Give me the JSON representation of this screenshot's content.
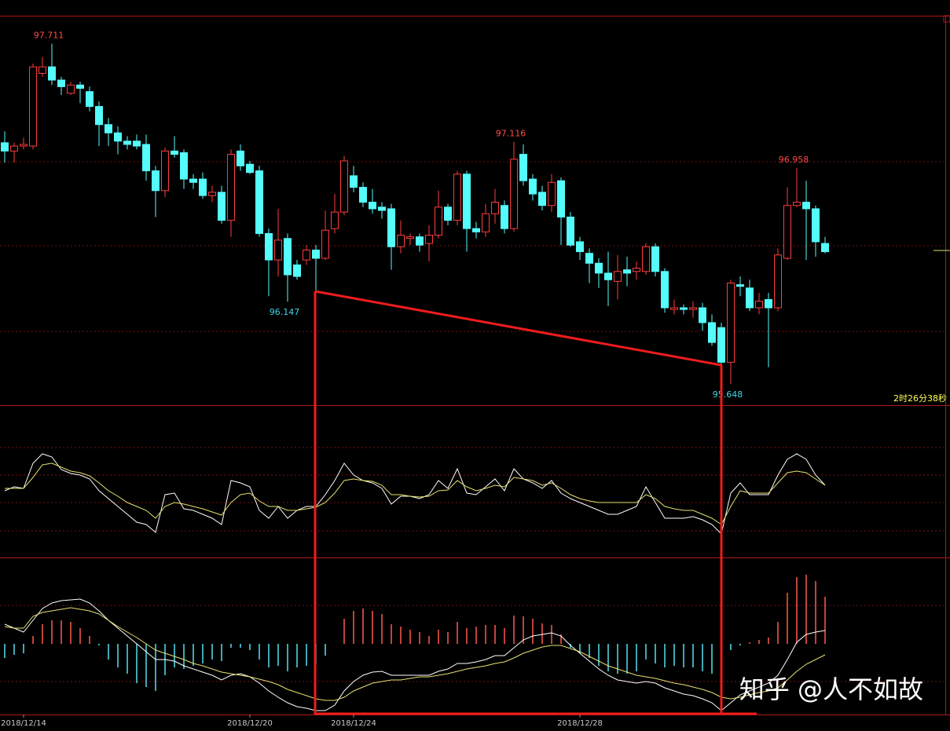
{
  "chart_data": [
    {
      "type": "candlestick",
      "categories": [
        null,
        null,
        "2018/12/14",
        null,
        null,
        null,
        null,
        null,
        null,
        null,
        null,
        null,
        null,
        null,
        null,
        null,
        null,
        null,
        null,
        null,
        null,
        null,
        null,
        null,
        null,
        null,
        "2018/12/20",
        null,
        null,
        null,
        null,
        null,
        null,
        null,
        null,
        null,
        null,
        "2018/12/24",
        null,
        null,
        null,
        null,
        null,
        null,
        null,
        null,
        null,
        null,
        null,
        null,
        null,
        null,
        null,
        null,
        null,
        null,
        null,
        null,
        null,
        null,
        null,
        "2018/12/28",
        null,
        null,
        null,
        null,
        null,
        null,
        null,
        null,
        null,
        null,
        null,
        null,
        null,
        null,
        null,
        null,
        null,
        null,
        null,
        null,
        null,
        null,
        null,
        null,
        null,
        null
      ],
      "open": [
        97.11,
        97.06,
        97.09,
        97.09,
        97.53,
        97.57,
        97.49,
        97.41,
        97.46,
        97.42,
        97.33,
        97.22,
        97.17,
        97.12,
        97.12,
        97.1,
        96.94,
        96.82,
        97.06,
        97.05,
        96.89,
        96.89,
        96.79,
        96.81,
        96.64,
        97.06,
        96.98,
        96.94,
        96.56,
        96.4,
        96.53,
        96.37,
        96.4,
        96.46,
        96.41,
        96.59,
        96.69,
        96.91,
        96.84,
        96.75,
        96.72,
        96.71,
        96.48,
        96.53,
        96.54,
        96.5,
        96.55,
        96.72,
        96.64,
        96.92,
        96.59,
        96.57,
        96.68,
        96.73,
        96.59,
        97.04,
        96.89,
        96.81,
        96.73,
        96.88,
        96.66,
        96.51,
        96.44,
        96.38,
        96.32,
        96.27,
        96.34,
        96.33,
        96.33,
        96.48,
        96.33,
        96.1,
        96.11,
        96.1,
        96.11,
        96.02,
        95.99,
        95.78,
        96.25,
        96.23,
        96.11,
        96.16,
        96.11,
        96.41,
        96.73,
        96.75,
        96.71,
        96.5
      ],
      "high": [
        97.18,
        97.11,
        97.14,
        97.59,
        97.63,
        97.711,
        97.51,
        97.48,
        97.48,
        97.45,
        97.36,
        97.26,
        97.21,
        97.15,
        97.16,
        97.16,
        96.97,
        97.08,
        97.15,
        97.07,
        96.92,
        96.93,
        96.85,
        96.85,
        97.07,
        97.1,
        97.0,
        96.97,
        96.59,
        96.71,
        96.56,
        96.4,
        96.49,
        96.49,
        96.7,
        96.8,
        97.03,
        96.97,
        96.87,
        96.83,
        96.75,
        96.74,
        96.64,
        96.56,
        96.56,
        96.61,
        96.82,
        96.74,
        96.94,
        96.94,
        96.63,
        96.74,
        96.83,
        96.76,
        97.116,
        97.1,
        96.92,
        96.85,
        96.92,
        96.9,
        96.69,
        96.54,
        96.47,
        96.41,
        96.45,
        96.43,
        96.42,
        96.39,
        96.5,
        96.5,
        96.35,
        96.16,
        96.13,
        96.15,
        96.14,
        96.07,
        96.02,
        96.28,
        96.3,
        96.28,
        96.2,
        96.2,
        96.47,
        96.84,
        96.958,
        96.88,
        96.73,
        96.54
      ],
      "low": [
        96.99,
        96.99,
        97.07,
        97.07,
        97.51,
        97.46,
        97.4,
        97.4,
        97.35,
        97.3,
        97.09,
        97.09,
        97.04,
        97.07,
        97.07,
        96.88,
        96.66,
        96.78,
        97.02,
        96.83,
        96.83,
        96.77,
        96.75,
        96.62,
        96.54,
        96.94,
        96.92,
        96.54,
        96.18,
        96.3,
        96.147,
        96.28,
        96.37,
        96.21,
        96.4,
        96.56,
        96.67,
        96.81,
        96.72,
        96.68,
        96.65,
        96.34,
        96.44,
        96.49,
        96.45,
        96.39,
        96.53,
        96.61,
        96.61,
        96.45,
        96.53,
        96.54,
        96.62,
        96.56,
        96.57,
        96.85,
        96.76,
        96.7,
        96.69,
        96.49,
        96.48,
        96.4,
        96.26,
        96.23,
        96.12,
        96.16,
        96.24,
        96.28,
        96.31,
        96.3,
        96.08,
        96.07,
        96.07,
        96.05,
        95.97,
        95.88,
        95.75,
        95.648,
        96.18,
        96.09,
        96.07,
        95.75,
        96.09,
        96.4,
        96.72,
        96.4,
        96.42,
        96.44
      ],
      "close": [
        97.06,
        97.09,
        97.1,
        97.57,
        97.57,
        97.49,
        97.45,
        97.46,
        97.44,
        97.33,
        97.22,
        97.17,
        97.12,
        97.1,
        97.09,
        96.94,
        96.82,
        97.06,
        97.04,
        96.89,
        96.87,
        96.79,
        96.81,
        96.64,
        97.04,
        96.97,
        96.93,
        96.56,
        96.4,
        96.52,
        96.31,
        96.3,
        96.46,
        96.41,
        96.58,
        96.69,
        97.0,
        96.84,
        96.75,
        96.71,
        96.7,
        96.48,
        96.55,
        96.54,
        96.49,
        96.55,
        96.72,
        96.64,
        96.92,
        96.59,
        96.57,
        96.68,
        96.75,
        96.59,
        97.01,
        96.88,
        96.8,
        96.73,
        96.87,
        96.66,
        96.49,
        96.45,
        96.38,
        96.32,
        96.28,
        96.33,
        96.32,
        96.35,
        96.48,
        96.33,
        96.11,
        96.11,
        96.1,
        96.11,
        96.02,
        95.9,
        95.78,
        96.26,
        96.24,
        96.11,
        96.15,
        96.11,
        96.43,
        96.73,
        96.75,
        96.71,
        96.51,
        96.45
      ],
      "ylim": [
        95.52,
        97.88
      ],
      "up_color": "#ff3c3c",
      "down_color": "#54fcfc",
      "labeled_highs": [
        5,
        54,
        84
      ],
      "labeled_lows": [
        30,
        77
      ],
      "high_label_color": "#ff4a4a",
      "low_label_color": "#3dd6e6"
    },
    {
      "type": "line",
      "series": [
        {
          "color": "#ffffff",
          "values": [
            85,
            90,
            88,
            120,
            132,
            128,
            112,
            107,
            105,
            100,
            85,
            75,
            65,
            55,
            45,
            42,
            32,
            80,
            82,
            62,
            60,
            55,
            50,
            42,
            98,
            95,
            90,
            60,
            50,
            65,
            50,
            60,
            65,
            65,
            80,
            98,
            120,
            105,
            98,
            95,
            88,
            68,
            78,
            78,
            75,
            80,
            98,
            88,
            113,
            82,
            80,
            90,
            100,
            85,
            113,
            100,
            95,
            88,
            98,
            82,
            75,
            70,
            65,
            60,
            55,
            55,
            60,
            65,
            90,
            70,
            50,
            50,
            50,
            52,
            48,
            42,
            30,
            82,
            95,
            80,
            80,
            80,
            105,
            125,
            132,
            125,
            105,
            92
          ]
        },
        {
          "color": "#e8e070",
          "values": [
            88,
            88,
            88,
            102,
            118,
            120,
            115,
            110,
            108,
            104,
            95,
            85,
            78,
            70,
            65,
            60,
            50,
            65,
            70,
            68,
            65,
            62,
            58,
            54,
            70,
            80,
            82,
            72,
            65,
            65,
            60,
            60,
            62,
            64,
            70,
            82,
            98,
            100,
            98,
            97,
            92,
            80,
            80,
            78,
            77,
            78,
            85,
            86,
            98,
            90,
            85,
            88,
            92,
            90,
            102,
            100,
            98,
            92,
            95,
            88,
            80,
            75,
            72,
            70,
            70,
            70,
            70,
            70,
            80,
            75,
            65,
            62,
            60,
            60,
            55,
            50,
            42,
            65,
            85,
            82,
            82,
            82,
            95,
            108,
            110,
            108,
            100,
            92
          ]
        }
      ],
      "ylim": [
        0,
        194
      ]
    },
    {
      "type": "macd",
      "histogram": {
        "up_color": "#ff5a4a",
        "down_color": "#54e0f0",
        "values": [
          -18,
          -14,
          -12,
          10,
          25,
          30,
          30,
          28,
          20,
          10,
          -2,
          -20,
          -30,
          -38,
          -50,
          -55,
          -60,
          -40,
          -30,
          -32,
          -28,
          -25,
          -20,
          -22,
          -5,
          -5,
          -8,
          -20,
          -30,
          -28,
          -35,
          -30,
          -28,
          -25,
          -15,
          0,
          32,
          42,
          45,
          42,
          38,
          25,
          22,
          18,
          15,
          10,
          18,
          15,
          28,
          20,
          22,
          24,
          24,
          20,
          36,
          35,
          32,
          26,
          24,
          12,
          -5,
          -12,
          -18,
          -28,
          -35,
          -38,
          -38,
          -35,
          -20,
          -25,
          -30,
          -28,
          -30,
          -30,
          -35,
          -38,
          -42,
          -8,
          -2,
          2,
          5,
          8,
          28,
          65,
          85,
          88,
          80,
          60
        ]
      },
      "series": [
        {
          "color": "#ffffff",
          "values": [
            25,
            20,
            15,
            30,
            45,
            52,
            55,
            56,
            57,
            52,
            42,
            30,
            20,
            10,
            0,
            -10,
            -20,
            -20,
            -22,
            -28,
            -32,
            -36,
            -40,
            -46,
            -40,
            -38,
            -42,
            -50,
            -60,
            -68,
            -75,
            -80,
            -82,
            -85,
            -85,
            -78,
            -60,
            -48,
            -40,
            -36,
            -35,
            -40,
            -40,
            -40,
            -40,
            -40,
            -35,
            -32,
            -25,
            -25,
            -23,
            -20,
            -15,
            -15,
            -5,
            5,
            10,
            12,
            14,
            10,
            -2,
            -12,
            -22,
            -32,
            -40,
            -46,
            -48,
            -50,
            -48,
            -50,
            -56,
            -60,
            -64,
            -66,
            -70,
            -75,
            -85,
            -75,
            -65,
            -60,
            -55,
            -50,
            -40,
            -20,
            2,
            12,
            15,
            17
          ]
        },
        {
          "color": "#e8e070",
          "values": [
            22,
            20,
            20,
            35,
            40,
            42,
            44,
            46,
            44,
            42,
            38,
            30,
            22,
            15,
            8,
            0,
            -8,
            -12,
            -16,
            -20,
            -25,
            -28,
            -32,
            -36,
            -38,
            -40,
            -42,
            -45,
            -48,
            -52,
            -58,
            -62,
            -66,
            -70,
            -72,
            -72,
            -68,
            -60,
            -55,
            -50,
            -48,
            -46,
            -46,
            -44,
            -42,
            -42,
            -40,
            -38,
            -35,
            -32,
            -30,
            -28,
            -25,
            -23,
            -18,
            -12,
            -8,
            -4,
            -2,
            -2,
            -6,
            -10,
            -16,
            -22,
            -28,
            -32,
            -36,
            -40,
            -42,
            -44,
            -47,
            -50,
            -52,
            -55,
            -58,
            -62,
            -68,
            -70,
            -68,
            -65,
            -62,
            -60,
            -56,
            -46,
            -35,
            -26,
            -20,
            -14
          ]
        }
      ],
      "ylim": [
        -90,
        110
      ]
    }
  ],
  "countdown": "2时26分38秒",
  "watermark": "知乎 @人不如故"
}
